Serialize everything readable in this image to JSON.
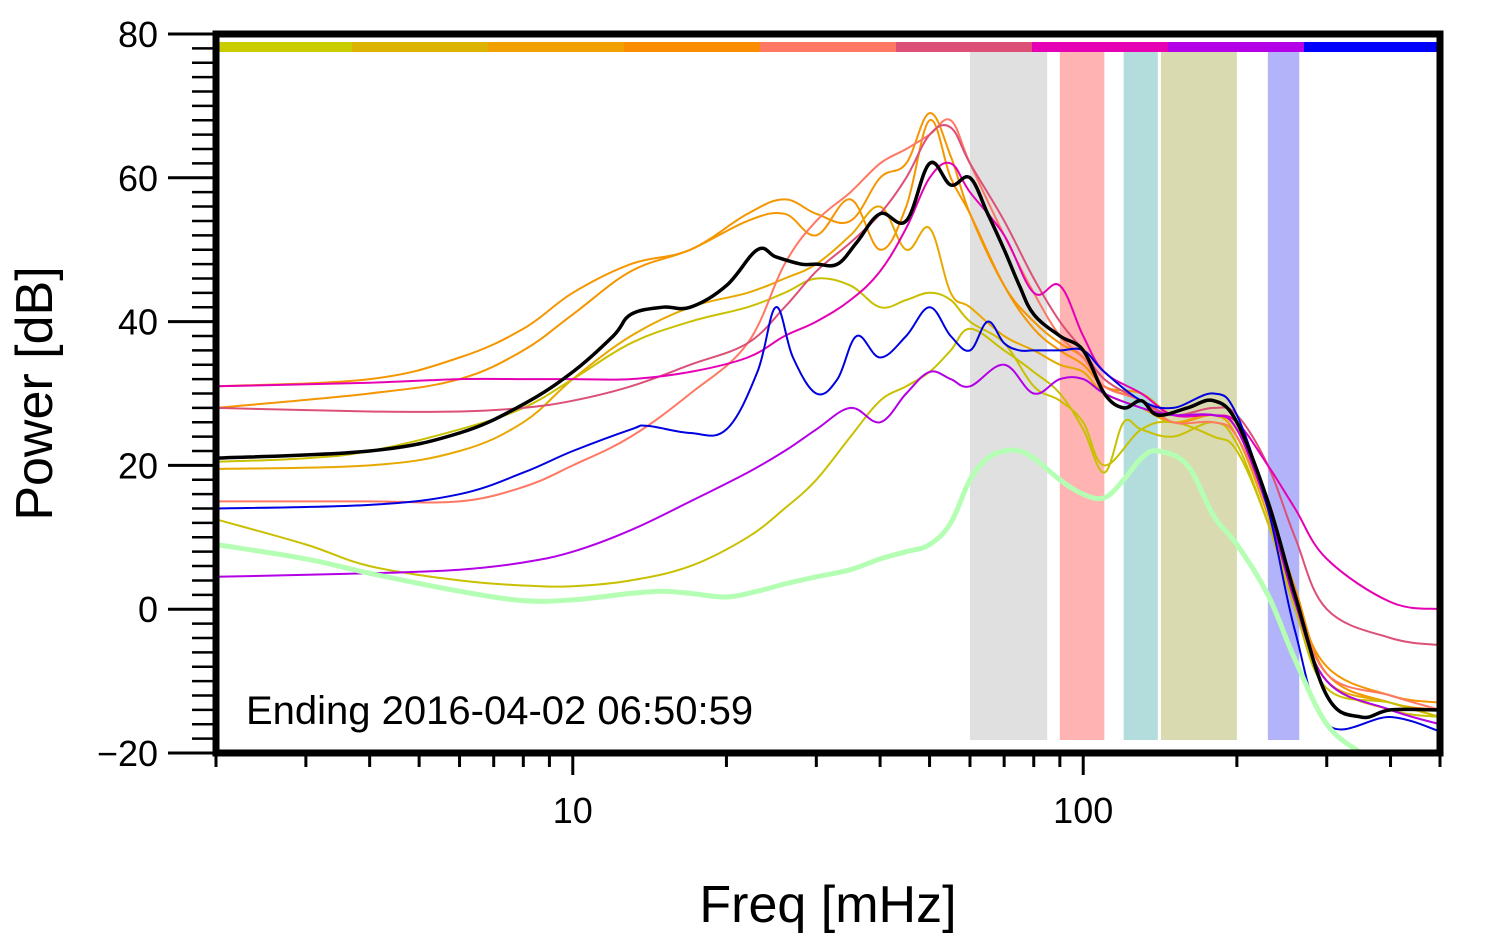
{
  "chart_data": {
    "type": "line",
    "xscale": "log",
    "xlabel": "Freq [mHz]",
    "ylabel": "Power [dB]",
    "xlim": [
      2,
      500
    ],
    "ylim": [
      -20,
      80
    ],
    "x_major_ticks": [
      10,
      100
    ],
    "x_minor_ticks": [
      2,
      3,
      4,
      5,
      6,
      7,
      8,
      9,
      20,
      30,
      40,
      50,
      60,
      70,
      80,
      90,
      200,
      300,
      400,
      500
    ],
    "y_ticks": [
      -20,
      0,
      20,
      40,
      60,
      80
    ],
    "annotation": "Ending 2016-04-02 06:50:59",
    "bands": [
      {
        "x": [
          60,
          85
        ],
        "color": "#e0e0e0"
      },
      {
        "x": [
          90,
          110
        ],
        "color": "#ffb3b3"
      },
      {
        "x": [
          120,
          140
        ],
        "color": "#b3dcdc"
      },
      {
        "x": [
          142,
          200
        ],
        "color": "#dadab0"
      },
      {
        "x": [
          230,
          265
        ],
        "color": "#b3b3fa"
      }
    ],
    "top_bar": [
      "#c8cc00",
      "#dcb400",
      "#f0a000",
      "#fa8c00",
      "#ff7864",
      "#dc5078",
      "#e600b4",
      "#b400e6",
      "#0000ff"
    ],
    "series": [
      {
        "name": "orange-1",
        "color": "#f59600",
        "width": 2,
        "x": [
          2,
          4,
          6,
          8,
          10,
          13,
          17,
          22,
          26,
          30,
          35,
          40,
          45,
          50,
          55,
          60,
          70,
          80,
          90,
          100,
          110,
          130,
          150,
          180,
          200,
          230,
          260,
          300,
          400,
          500
        ],
        "y": [
          31,
          32,
          35,
          39,
          44,
          48,
          50,
          55,
          57,
          55,
          54,
          60,
          62,
          69,
          63,
          55,
          45,
          40,
          37,
          35,
          31,
          30,
          27,
          27,
          25,
          15,
          2,
          -8,
          -12,
          -13
        ]
      },
      {
        "name": "orange-2",
        "color": "#f59600",
        "width": 2,
        "x": [
          2,
          4,
          6,
          8,
          10,
          13,
          17,
          22,
          26,
          30,
          35,
          40,
          45,
          50,
          55,
          60,
          70,
          80,
          90,
          100,
          110,
          130,
          150,
          180,
          200,
          230,
          260,
          300,
          400,
          500
        ],
        "y": [
          28,
          30,
          32,
          36,
          41,
          47,
          50,
          54,
          55,
          52,
          57,
          50,
          56,
          68,
          60,
          55,
          45,
          39,
          36,
          34,
          31,
          29,
          26,
          27,
          25,
          14,
          3,
          -9,
          -13,
          -14
        ]
      },
      {
        "name": "gold-1",
        "color": "#e8a800",
        "width": 2,
        "x": [
          2,
          4,
          6,
          8,
          10,
          13,
          17,
          22,
          26,
          30,
          35,
          40,
          45,
          50,
          55,
          60,
          70,
          80,
          90,
          100,
          110,
          130,
          150,
          180,
          200,
          230,
          260,
          300,
          400,
          500
        ],
        "y": [
          19.5,
          20,
          22,
          26,
          32,
          38,
          42,
          44,
          46,
          48,
          52,
          56,
          50,
          53,
          44,
          42,
          38,
          36,
          34,
          33,
          30,
          28,
          26,
          27,
          24,
          13,
          1,
          -10,
          -13,
          -15
        ]
      },
      {
        "name": "yellow-1",
        "color": "#c8c000",
        "width": 2,
        "x": [
          2,
          3,
          4,
          6,
          8,
          10,
          13,
          17,
          22,
          26,
          30,
          35,
          40,
          45,
          50,
          55,
          60,
          70,
          80,
          90,
          100,
          110,
          120,
          130,
          150,
          180,
          200,
          230,
          260,
          300,
          400,
          500
        ],
        "y": [
          12.5,
          9,
          6,
          4,
          3.3,
          3.2,
          4,
          6,
          10,
          14,
          18,
          24,
          29,
          31,
          33,
          36,
          39,
          36,
          33,
          30,
          25,
          19,
          26,
          25,
          24,
          26,
          23,
          12,
          1,
          -10,
          -14,
          -15
        ]
      },
      {
        "name": "yellow-2",
        "color": "#c8c000",
        "width": 2,
        "x": [
          2,
          3,
          4,
          6,
          8,
          10,
          13,
          17,
          22,
          26,
          30,
          35,
          40,
          45,
          50,
          55,
          60,
          70,
          80,
          90,
          100,
          110,
          130,
          150,
          180,
          200,
          230,
          260,
          300,
          400,
          500
        ],
        "y": [
          20.5,
          21,
          22,
          25,
          28,
          32,
          37,
          40,
          42,
          44,
          46,
          45,
          42,
          43,
          44,
          43,
          40,
          37,
          31,
          29,
          26,
          20,
          25,
          26,
          24,
          22,
          12,
          0,
          -11,
          -13,
          -15
        ]
      },
      {
        "name": "salmon",
        "color": "#ff7864",
        "width": 2,
        "x": [
          2,
          4,
          6,
          8,
          10,
          13,
          17,
          22,
          26,
          30,
          35,
          40,
          45,
          50,
          55,
          60,
          70,
          80,
          90,
          100,
          110,
          130,
          150,
          180,
          200,
          230,
          260,
          300,
          400,
          500
        ],
        "y": [
          15,
          15,
          15,
          17,
          20,
          24,
          30,
          37,
          48,
          54,
          58,
          62,
          64,
          66,
          68,
          62,
          52,
          44,
          38,
          35,
          31,
          29,
          26,
          26,
          24,
          14,
          2,
          -9,
          -12,
          -14
        ]
      },
      {
        "name": "rose",
        "color": "#dc5078",
        "width": 2,
        "x": [
          2,
          4,
          6,
          8,
          10,
          13,
          17,
          22,
          26,
          30,
          35,
          40,
          45,
          50,
          55,
          60,
          70,
          80,
          90,
          100,
          110,
          130,
          150,
          180,
          200,
          230,
          260,
          300,
          400,
          500
        ],
        "y": [
          28,
          27.5,
          27.5,
          28,
          29,
          31,
          34,
          37,
          42,
          47,
          51,
          55,
          60,
          66,
          67,
          62,
          54,
          46,
          40,
          36,
          32,
          29,
          27,
          28,
          27,
          20,
          10,
          0,
          -4,
          -5
        ]
      },
      {
        "name": "magenta-1",
        "color": "#e600b4",
        "width": 2,
        "x": [
          2,
          4,
          6,
          8,
          10,
          13,
          17,
          22,
          26,
          30,
          35,
          40,
          45,
          50,
          55,
          60,
          70,
          80,
          90,
          100,
          110,
          130,
          150,
          180,
          200,
          230,
          260,
          300,
          400,
          500
        ],
        "y": [
          31,
          31.5,
          32,
          32,
          32,
          32,
          33,
          35,
          38,
          40,
          43,
          47,
          53,
          60,
          62,
          58,
          52,
          44,
          45,
          38,
          33,
          30,
          27,
          27,
          26,
          20,
          14,
          7,
          1,
          0
        ]
      },
      {
        "name": "purple",
        "color": "#b400e6",
        "width": 2,
        "x": [
          2,
          4,
          6,
          8,
          10,
          13,
          17,
          22,
          26,
          30,
          35,
          40,
          45,
          50,
          55,
          60,
          70,
          80,
          90,
          100,
          110,
          130,
          150,
          180,
          200,
          230,
          260,
          300,
          400,
          500
        ],
        "y": [
          4.5,
          5,
          5.5,
          6.5,
          8,
          11,
          15,
          19,
          22,
          25,
          28,
          26,
          30,
          33,
          32,
          31,
          34,
          30,
          32,
          32,
          30,
          28,
          27,
          27,
          25,
          14,
          1,
          -10,
          -14,
          -16
        ]
      },
      {
        "name": "blue",
        "color": "#0000e0",
        "width": 2,
        "x": [
          2,
          4,
          6,
          8,
          10,
          13,
          14,
          17,
          20,
          23,
          25,
          27,
          30,
          33,
          36,
          40,
          45,
          50,
          55,
          60,
          65,
          70,
          75,
          80,
          90,
          100,
          110,
          130,
          150,
          180,
          200,
          230,
          260,
          300,
          400,
          500
        ],
        "y": [
          14,
          14.5,
          16,
          19,
          22,
          25,
          25.5,
          24.5,
          25,
          33,
          42,
          35,
          30,
          32,
          38,
          35,
          38,
          42,
          38,
          36,
          40,
          37,
          36,
          36,
          36,
          36,
          33,
          29,
          28,
          30,
          27,
          14,
          -3,
          -16,
          -15,
          -17
        ]
      },
      {
        "name": "light-green",
        "color": "#b4ffb4",
        "width": 5,
        "x": [
          2,
          3,
          4,
          6,
          8,
          10,
          13,
          15,
          17,
          20,
          23,
          26,
          30,
          35,
          40,
          45,
          50,
          55,
          60,
          65,
          70,
          75,
          80,
          90,
          100,
          110,
          120,
          130,
          140,
          160,
          180,
          200,
          230,
          260,
          300,
          350
        ],
        "y": [
          9,
          7,
          5,
          2.5,
          1.2,
          1.3,
          2.2,
          2.5,
          2.2,
          1.7,
          2.5,
          3.5,
          4.5,
          5.5,
          7,
          8,
          9,
          12,
          18,
          21,
          22,
          22,
          21,
          18,
          16,
          15.5,
          18,
          21,
          22,
          20,
          13,
          9,
          2,
          -7,
          -16,
          -20
        ]
      },
      {
        "name": "black-mean",
        "color": "#000000",
        "width": 3.5,
        "x": [
          2,
          4,
          6,
          8,
          10,
          12,
          13,
          15,
          17,
          20,
          23,
          25,
          28,
          30,
          33,
          36,
          40,
          45,
          50,
          55,
          60,
          65,
          70,
          75,
          80,
          90,
          100,
          110,
          120,
          130,
          140,
          160,
          180,
          200,
          230,
          260,
          300,
          350,
          400,
          500
        ],
        "y": [
          21,
          22,
          24.5,
          28.5,
          33,
          38,
          41,
          42,
          42,
          45,
          50,
          49,
          48,
          48,
          48,
          51,
          55,
          54,
          62,
          59,
          60,
          55,
          50,
          45,
          41,
          38,
          36,
          30,
          28,
          29,
          27,
          28,
          29,
          26,
          15,
          2,
          -12,
          -15,
          -14,
          -14
        ]
      }
    ]
  }
}
